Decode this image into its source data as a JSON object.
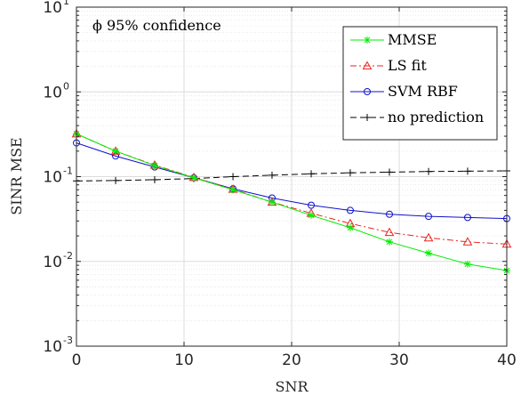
{
  "chart_data": {
    "type": "line",
    "xlabel": "SNR",
    "ylabel": "SINR MSE",
    "annotation": "ϕ 95% confidence",
    "xlim": [
      0,
      40
    ],
    "ylim": [
      0.001,
      10
    ],
    "y_scale": "log",
    "grid": "on (major and minor)",
    "legend_position": "top-right",
    "x_ticks": [
      0,
      10,
      20,
      30,
      40
    ],
    "y_ticks": [
      {
        "base": "10",
        "exp": "-3",
        "value": 0.001
      },
      {
        "base": "10",
        "exp": "-2",
        "value": 0.01
      },
      {
        "base": "10",
        "exp": "-1",
        "value": 0.1
      },
      {
        "base": "10",
        "exp": "0",
        "value": 1
      },
      {
        "base": "10",
        "exp": "1",
        "value": 10
      }
    ],
    "x": [
      0,
      3.64,
      7.27,
      10.91,
      14.55,
      18.18,
      21.82,
      25.45,
      29.09,
      32.73,
      36.36,
      40
    ],
    "series": [
      {
        "name": "MMSE",
        "color": "#00ee00",
        "line": "solid",
        "marker": "asterisk",
        "values": [
          0.32,
          0.2,
          0.135,
          0.097,
          0.07,
          0.05,
          0.035,
          0.025,
          0.017,
          0.0125,
          0.0093,
          0.0078
        ]
      },
      {
        "name": "LS fit",
        "color": "#ee2222",
        "line": "dashdot",
        "marker": "triangle",
        "values": [
          0.32,
          0.2,
          0.137,
          0.098,
          0.071,
          0.05,
          0.037,
          0.028,
          0.022,
          0.019,
          0.017,
          0.016
        ]
      },
      {
        "name": "SVM RBF",
        "color": "#1010cc",
        "line": "solid",
        "marker": "circle",
        "values": [
          0.25,
          0.175,
          0.13,
          0.097,
          0.072,
          0.056,
          0.046,
          0.04,
          0.036,
          0.034,
          0.033,
          0.032
        ]
      },
      {
        "name": "no prediction",
        "color": "#000000",
        "line": "dashed",
        "marker": "plus",
        "values": [
          0.089,
          0.09,
          0.092,
          0.095,
          0.1,
          0.104,
          0.108,
          0.111,
          0.113,
          0.115,
          0.116,
          0.117
        ]
      }
    ]
  }
}
